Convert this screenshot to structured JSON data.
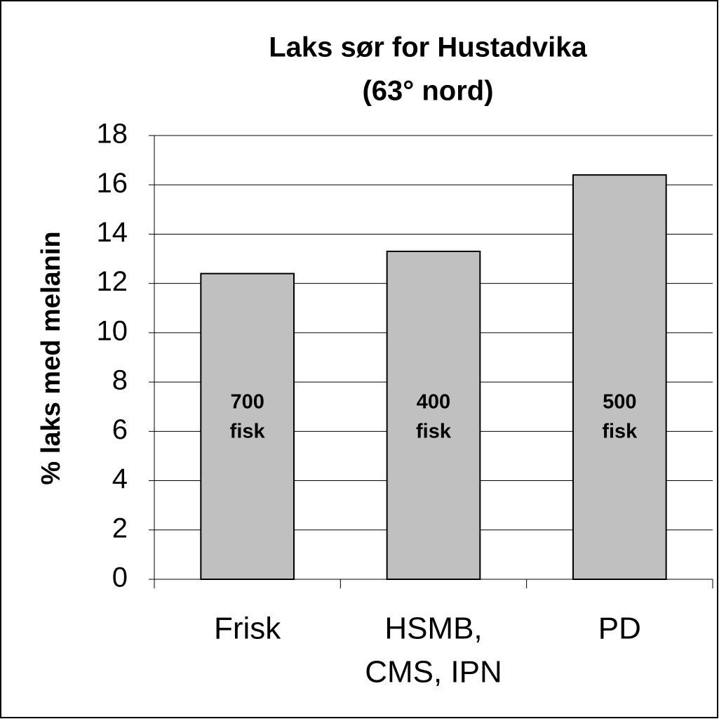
{
  "chart_data": {
    "type": "bar",
    "title": [
      "Laks sør for Hustadvika",
      "(63° nord)"
    ],
    "y_label": "% laks med melanin",
    "categories": [
      [
        "Frisk"
      ],
      [
        "HSMB,",
        "CMS, IPN"
      ],
      [
        "PD"
      ]
    ],
    "values": [
      12.4,
      13.3,
      16.4
    ],
    "annotations": [
      [
        "700",
        "fisk"
      ],
      [
        "400",
        "fisk"
      ],
      [
        "500",
        "fisk"
      ]
    ],
    "color": "#c0c0c0",
    "ylim": [
      0,
      18
    ],
    "yticks": [
      0,
      2,
      4,
      6,
      8,
      10,
      12,
      14,
      16,
      18
    ],
    "grid": true
  }
}
